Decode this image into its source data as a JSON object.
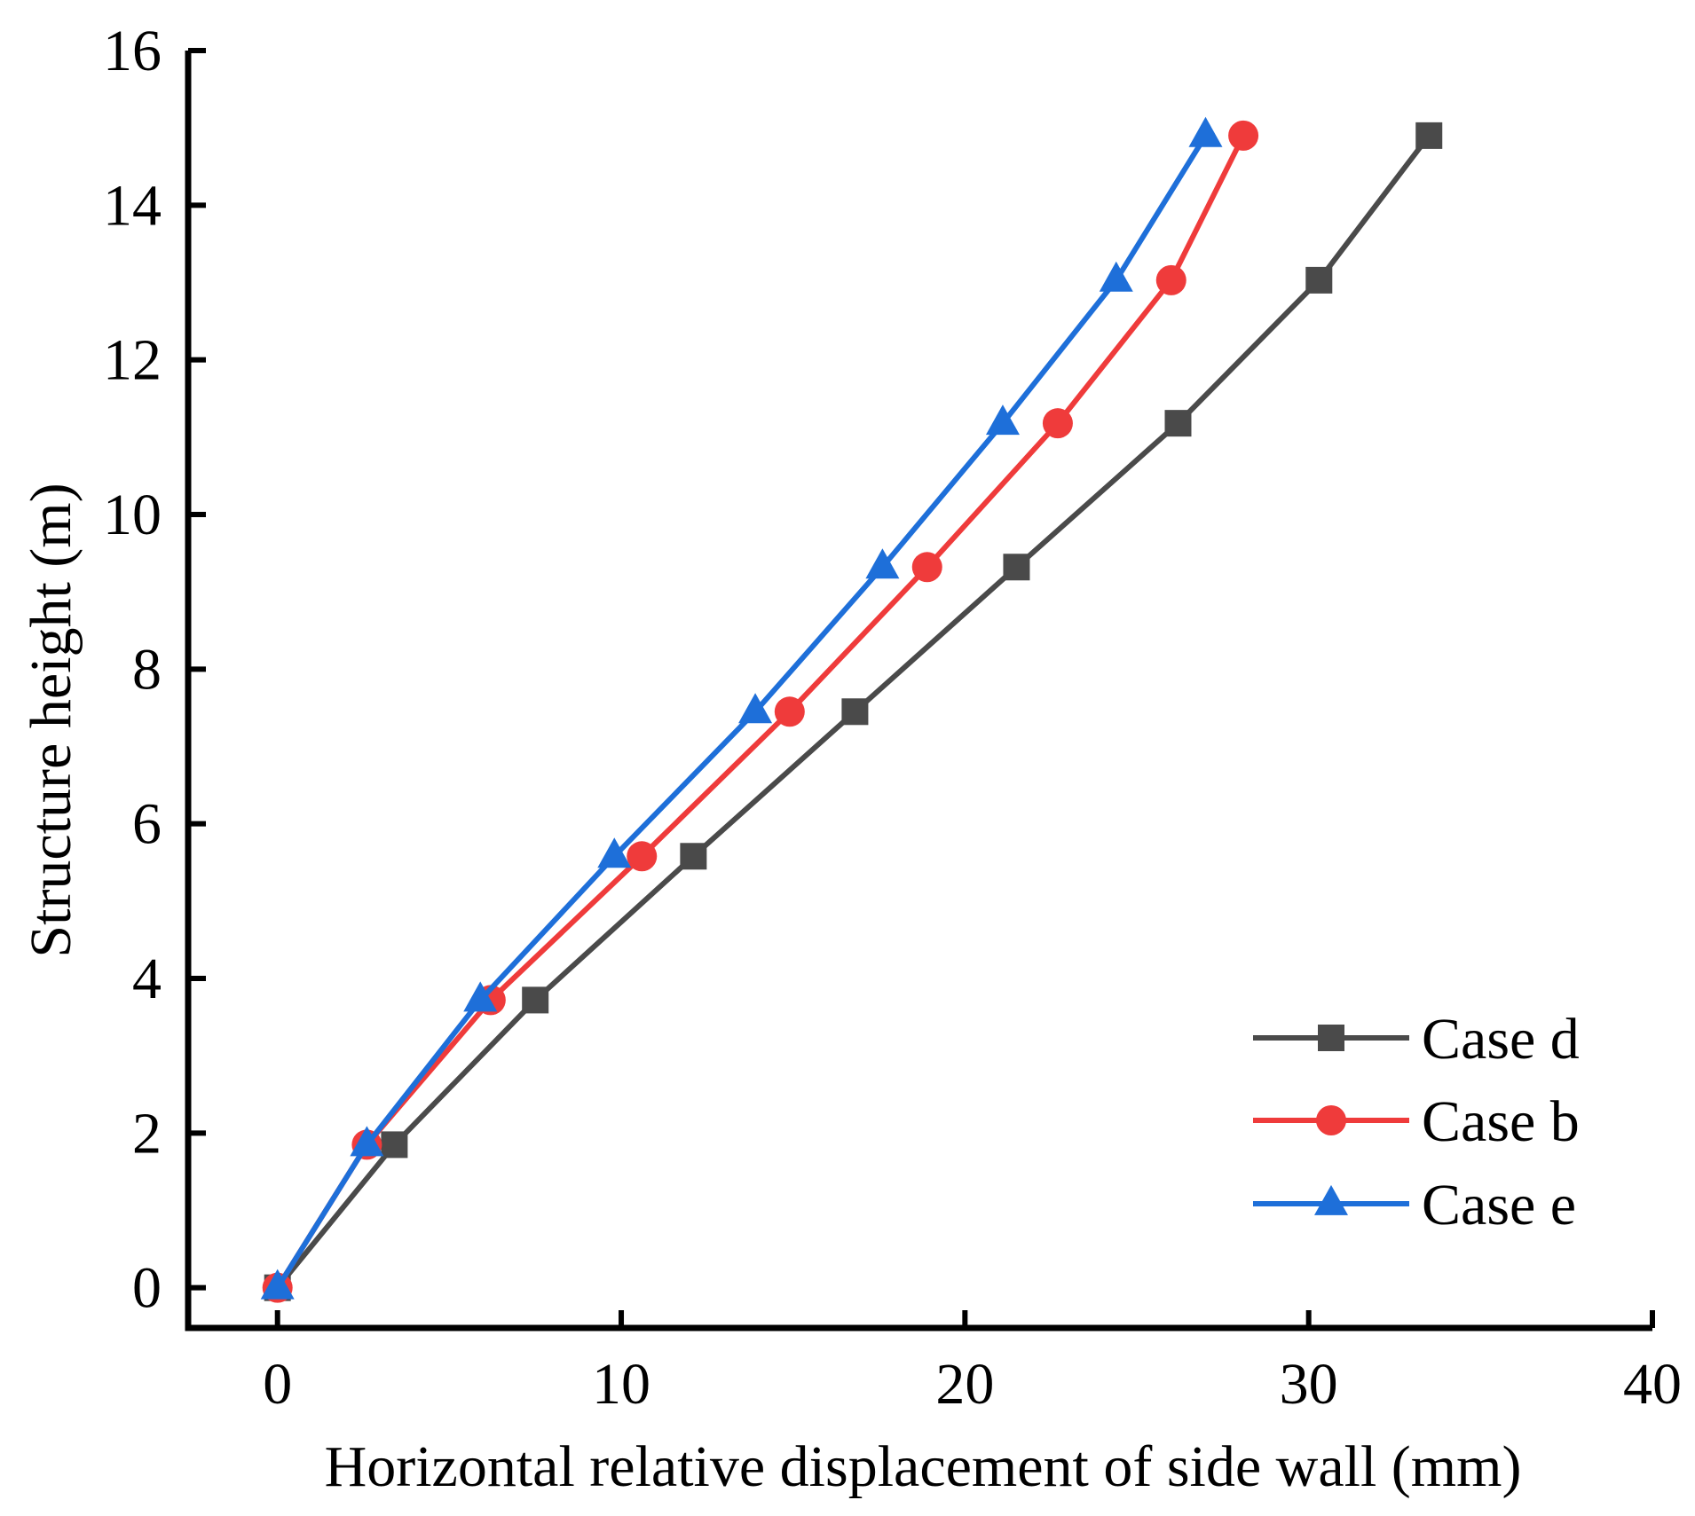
{
  "chart_data": {
    "type": "line",
    "xlabel": "Horizontal relative displacement of side wall (mm)",
    "ylabel": "Structure height (m)",
    "xlim": [
      -2.6,
      40
    ],
    "ylim": [
      -0.52,
      16
    ],
    "xticks": [
      0,
      10,
      20,
      30,
      40
    ],
    "yticks": [
      0,
      2,
      4,
      6,
      8,
      10,
      12,
      14,
      16
    ],
    "legend_position": "bottom-right",
    "series": [
      {
        "name": "Case d",
        "color": "#4a4a4a",
        "marker": "square",
        "x": [
          0,
          3.4,
          7.5,
          12.1,
          16.8,
          21.5,
          26.2,
          30.3,
          33.5
        ],
        "y": [
          0,
          1.85,
          3.72,
          5.58,
          7.45,
          9.32,
          11.18,
          13.03,
          14.9
        ]
      },
      {
        "name": "Case b",
        "color": "#ef3b3b",
        "marker": "circle",
        "x": [
          0,
          2.6,
          6.2,
          10.6,
          14.9,
          18.9,
          22.7,
          26.0,
          28.1
        ],
        "y": [
          0,
          1.85,
          3.72,
          5.58,
          7.45,
          9.32,
          11.18,
          13.03,
          14.9
        ]
      },
      {
        "name": "Case e",
        "color": "#1e6fd9",
        "marker": "triangle",
        "x": [
          0,
          2.6,
          5.9,
          9.8,
          13.9,
          17.6,
          21.1,
          24.4,
          27.0
        ],
        "y": [
          0,
          1.85,
          3.72,
          5.58,
          7.45,
          9.32,
          11.18,
          13.03,
          14.9
        ]
      }
    ]
  }
}
